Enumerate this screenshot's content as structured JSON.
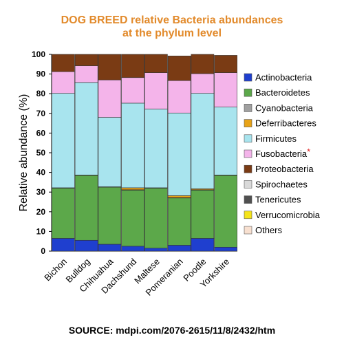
{
  "title_line1": "DOG BREED relative Bacteria abundances",
  "title_line2": "at the phylum level",
  "source": "SOURCE: mdpi.com/2076-2615/11/8/2432/htm",
  "chart_data": {
    "type": "bar",
    "stacked": true,
    "title": "DOG BREED relative Bacteria abundances at the phylum level",
    "xlabel": "",
    "ylabel": "Relative abundance (%)",
    "ylim": [
      0,
      100
    ],
    "yticks": [
      "0",
      "10",
      "20",
      "30",
      "40",
      "50",
      "60",
      "70",
      "80",
      "90",
      "100"
    ],
    "categories": [
      "Bichon",
      "Bulldog",
      "Chihuahua",
      "Dachshund",
      "Maltese",
      "Pomeranian",
      "Poodle",
      "Yorkshire"
    ],
    "legend_position": "right",
    "series": [
      {
        "name": "Actinobacteria",
        "color": "#1f3fcf",
        "values": [
          6.5,
          5.5,
          3.5,
          2.5,
          1.5,
          3.0,
          6.5,
          2.0
        ]
      },
      {
        "name": "Bacteroidetes",
        "color": "#5ca84a",
        "values": [
          25.5,
          33.0,
          29.0,
          28.5,
          30.5,
          24.0,
          24.5,
          36.5
        ]
      },
      {
        "name": "Cyanobacteria",
        "color": "#a0a0a0",
        "values": [
          0.2,
          0.2,
          0.2,
          0.2,
          0.2,
          0.2,
          0.2,
          0.2
        ]
      },
      {
        "name": "Deferribacteres",
        "color": "#e8a317",
        "values": [
          0,
          0,
          0,
          1.0,
          0,
          1.0,
          0.5,
          0
        ]
      },
      {
        "name": "Firmicutes",
        "color": "#a8e4ee",
        "values": [
          48.0,
          47.0,
          35.3,
          43.0,
          40.0,
          42.0,
          48.5,
          34.5
        ]
      },
      {
        "name": "Fusobacteria",
        "color": "#f4b4ea",
        "values": [
          11.0,
          8.5,
          19.0,
          13.0,
          18.5,
          16.5,
          10.0,
          17.5
        ]
      },
      {
        "name": "Proteobacteria",
        "color": "#7a3b14",
        "values": [
          8.8,
          5.8,
          13.0,
          11.8,
          9.3,
          12.5,
          9.8,
          8.8
        ]
      },
      {
        "name": "Spirochaetes",
        "color": "#d9d9d9",
        "values": [
          0,
          0,
          0,
          0,
          0,
          0,
          0,
          0
        ]
      },
      {
        "name": "Tenericutes",
        "color": "#505050",
        "values": [
          0,
          0,
          0,
          0,
          0,
          0,
          0,
          0
        ]
      },
      {
        "name": "Verrucomicrobia",
        "color": "#f5e41a",
        "values": [
          0,
          0,
          0,
          0,
          0,
          0,
          0,
          0
        ]
      },
      {
        "name": "Others",
        "color": "#f8e0d0",
        "values": [
          0,
          0,
          0,
          0,
          0,
          0,
          0,
          0
        ]
      }
    ],
    "starred_series": "Fusobacteria",
    "star_glyph": "*",
    "grid": false
  }
}
